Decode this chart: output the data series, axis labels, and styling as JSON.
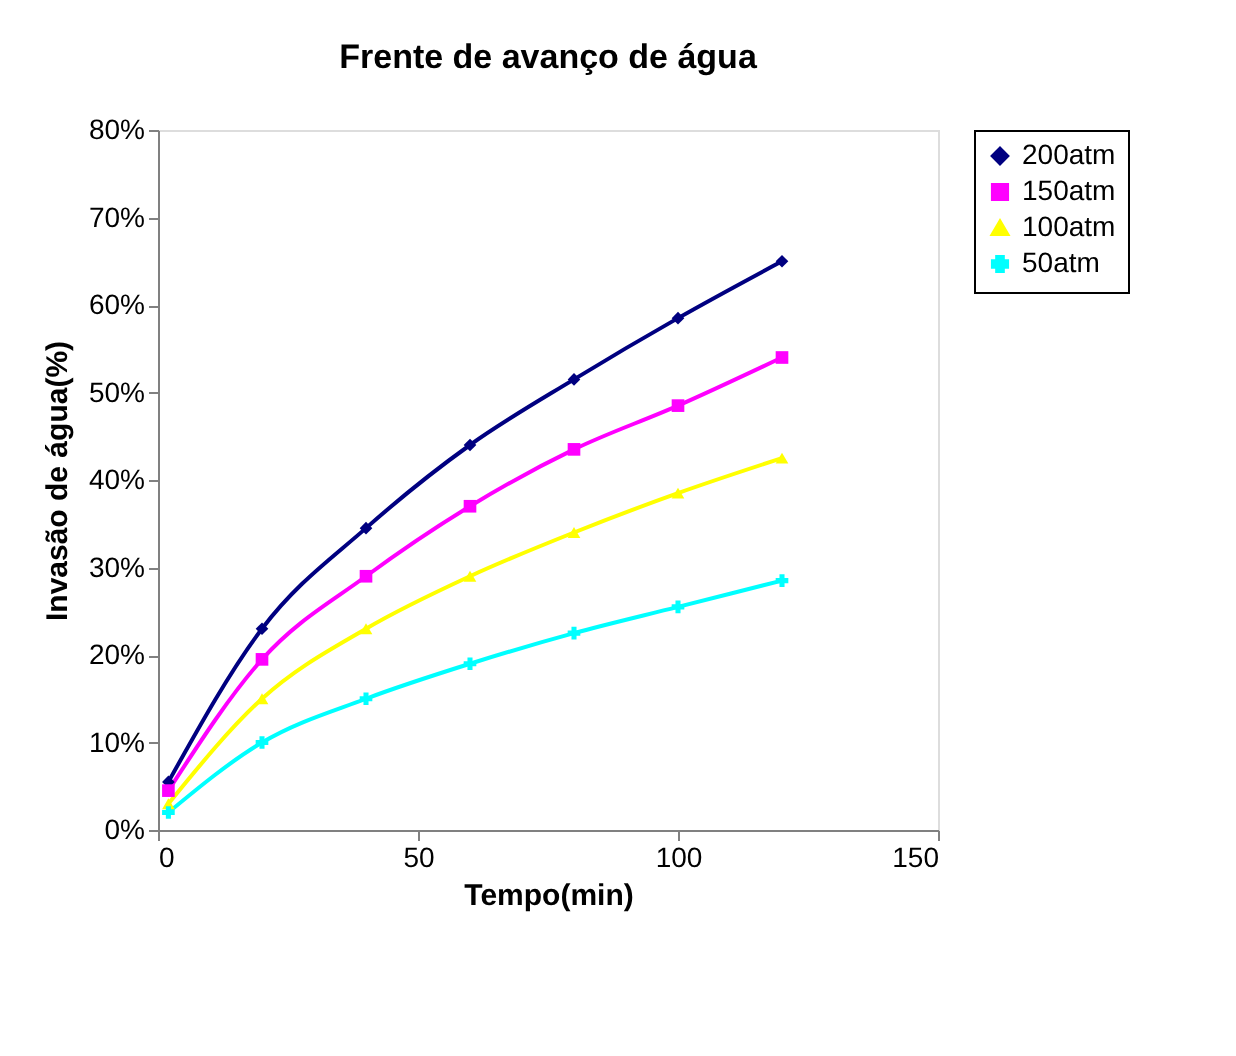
{
  "chart_data": {
    "type": "line",
    "title": "Frente de avanço de água",
    "xlabel": "Tempo(min)",
    "ylabel": "Invasão de água(%)",
    "x": [
      2,
      20,
      40,
      60,
      80,
      100,
      120
    ],
    "series": [
      {
        "name": "200atm",
        "color": "#000080",
        "marker": "diamond",
        "values": [
          0.055,
          0.23,
          0.345,
          0.44,
          0.515,
          0.585,
          0.65
        ]
      },
      {
        "name": "150atm",
        "color": "#ff00ff",
        "marker": "square",
        "values": [
          0.045,
          0.195,
          0.29,
          0.37,
          0.435,
          0.485,
          0.54
        ]
      },
      {
        "name": "100atm",
        "color": "#ffff00",
        "marker": "triangle",
        "values": [
          0.03,
          0.15,
          0.23,
          0.29,
          0.34,
          0.385,
          0.425
        ]
      },
      {
        "name": "50atm",
        "color": "#00ffff",
        "marker": "cross",
        "values": [
          0.02,
          0.1,
          0.15,
          0.19,
          0.225,
          0.255,
          0.285
        ]
      }
    ],
    "xlim": [
      0,
      150
    ],
    "xticks": [
      0,
      50,
      100,
      150
    ],
    "ylim": [
      0,
      0.8
    ],
    "yticks": [
      {
        "value": 0,
        "label": "0%"
      },
      {
        "value": 0.1,
        "label": "10%"
      },
      {
        "value": 0.2,
        "label": "20%"
      },
      {
        "value": 0.3,
        "label": "30%"
      },
      {
        "value": 0.4,
        "label": "40%"
      },
      {
        "value": 0.5,
        "label": "50%"
      },
      {
        "value": 0.6,
        "label": "60%"
      },
      {
        "value": 0.7,
        "label": "70%"
      },
      {
        "value": 0.8,
        "label": "80%"
      }
    ],
    "grid": false,
    "legend": "right",
    "line_style": "solid"
  }
}
